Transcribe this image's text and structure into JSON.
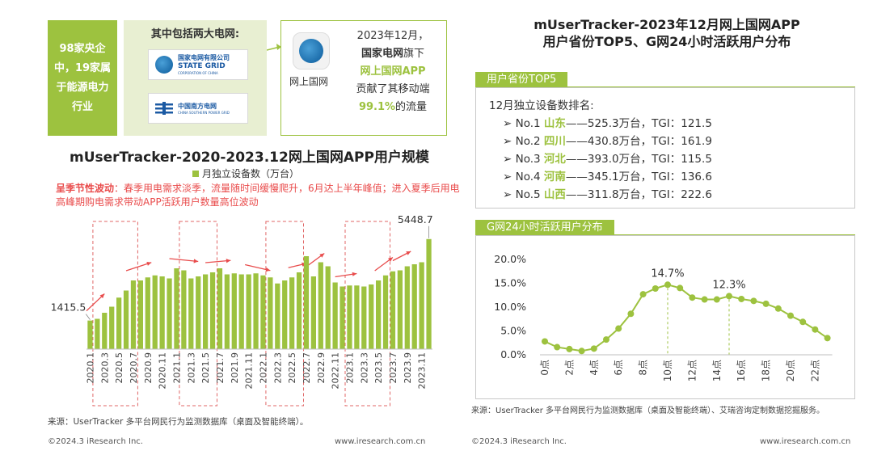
{
  "left": {
    "green_box_text": "98家央企中，19家属于能源电力行业",
    "grid_title": "其中包括两大电网:",
    "logo_state_grid": {
      "cn": "国家电网有限公司",
      "en": "STATE GRID",
      "sub": "CORPORATION OF CHINA"
    },
    "logo_southern_grid": {
      "cn": "中国南方电网",
      "sub": "CHINA SOUTHERN POWER GRID"
    },
    "app_caption": "网上国网",
    "app_text": {
      "line1": "2023年12月，",
      "line2a": "国家电网",
      "line2b": "旗下",
      "line3": "网上国网APP",
      "line4": "贡献了其移动端",
      "line5a": "99.1%",
      "line5b": "的流量"
    },
    "note_bold": "呈季节性波动",
    "note_text": "：春季用电需求淡季，流量随时间缓慢爬升，6月达上半年峰值；进入夏季后用电高峰期购电需求带动APP活跃用户数量高位波动",
    "source": "来源：UserTracker 多平台网民行为监测数据库（桌面及智能终端）。",
    "footer_left": "©2024.3 iResearch Inc.",
    "footer_right": "www.iresearch.com.cn"
  },
  "right": {
    "title_line1": "mUserTracker-2023年12月网上国网APP",
    "title_line2": "用户省份TOP5、G网24小时活跃用户分布",
    "top5_label": "用户省份TOP5",
    "top5_intro": "12月独立设备数排名:",
    "top5": [
      {
        "rank": "No.1",
        "prov": "山东",
        "value": "——525.3万台，TGI：121.5"
      },
      {
        "rank": "No.2",
        "prov": "四川",
        "value": "——430.8万台，TGI：161.9"
      },
      {
        "rank": "No.3",
        "prov": "河北",
        "value": "——393.0万台，TGI：115.5"
      },
      {
        "rank": "No.4",
        "prov": "河南",
        "value": "——345.1万台，TGI：136.6"
      },
      {
        "rank": "No.5",
        "prov": "山西",
        "value": "——311.8万台，TGI：222.6"
      }
    ],
    "hourly_label": "G网24小时活跃用户分布",
    "source": "来源：UserTracker 多平台网民行为监测数据库（桌面及智能终端）、艾瑞咨询定制数据挖掘服务。",
    "footer_left": "©2024.3 iResearch Inc.",
    "footer_right": "www.iresearch.com.cn"
  },
  "chart_data": [
    {
      "type": "bar",
      "title": "mUserTracker-2020-2023.12网上国网APP用户规模",
      "legend": "月独立设备数（万台）",
      "color": "#9dc23f",
      "categories": [
        "2020.1",
        "2020.2",
        "2020.3",
        "2020.4",
        "2020.5",
        "2020.6",
        "2020.7",
        "2020.8",
        "2020.9",
        "2020.10",
        "2020.11",
        "2020.12",
        "2021.1",
        "2021.2",
        "2021.3",
        "2021.4",
        "2021.5",
        "2021.6",
        "2021.7",
        "2021.8",
        "2021.9",
        "2021.10",
        "2021.11",
        "2021.12",
        "2022.1",
        "2022.2",
        "2022.3",
        "2022.4",
        "2022.5",
        "2022.6",
        "2022.7",
        "2022.8",
        "2022.9",
        "2022.10",
        "2022.11",
        "2022.12",
        "2023.1",
        "2023.2",
        "2023.3",
        "2023.4",
        "2023.5",
        "2023.6",
        "2023.7",
        "2023.8",
        "2023.9",
        "2023.10",
        "2023.11",
        "2023.12"
      ],
      "tick_labels": [
        "2020.1",
        "2020.3",
        "2020.5",
        "2020.7",
        "2020.9",
        "2020.11",
        "2021.1",
        "2021.3",
        "2021.5",
        "2021.7",
        "2021.9",
        "2021.11",
        "2022.1",
        "2022.3",
        "2022.5",
        "2022.7",
        "2022.9",
        "2022.11",
        "2023.1",
        "2023.3",
        "2023.5",
        "2023.7",
        "2023.9",
        "2023.11"
      ],
      "values": [
        1415.5,
        1500,
        1800,
        2100,
        2550,
        2900,
        3400,
        3400,
        3550,
        3650,
        3600,
        3500,
        4000,
        3900,
        3500,
        3600,
        3700,
        3800,
        4000,
        3700,
        3750,
        3700,
        3700,
        3750,
        3650,
        3550,
        3250,
        3400,
        3550,
        3800,
        4600,
        3600,
        4300,
        4100,
        3300,
        3100,
        3150,
        3150,
        3100,
        3200,
        3400,
        3650,
        3850,
        3900,
        4100,
        4200,
        4300,
        5448.7
      ],
      "data_labels": {
        "first": "1415.5",
        "last": "5448.7"
      },
      "ylim": [
        0,
        6000
      ]
    },
    {
      "type": "line",
      "title": "G网24小时活跃用户分布",
      "color": "#9dc23f",
      "x": [
        "0点",
        "1点",
        "2点",
        "3点",
        "4点",
        "5点",
        "6点",
        "7点",
        "8点",
        "9点",
        "10点",
        "11点",
        "12点",
        "13点",
        "14点",
        "15点",
        "16点",
        "17点",
        "18点",
        "19点",
        "20点",
        "21点",
        "22点",
        "23点"
      ],
      "tick_labels": [
        "0点",
        "2点",
        "4点",
        "6点",
        "8点",
        "10点",
        "12点",
        "14点",
        "16点",
        "18点",
        "20点",
        "22点"
      ],
      "values": [
        2.8,
        1.6,
        1.2,
        0.8,
        1.3,
        3.2,
        5.5,
        8.6,
        12.7,
        13.9,
        14.7,
        14.0,
        12.0,
        11.6,
        11.6,
        12.3,
        11.7,
        11.3,
        10.7,
        9.7,
        8.2,
        6.9,
        5.3,
        3.5
      ],
      "y_ticks": [
        "0.0%",
        "5.0%",
        "10.0%",
        "15.0%",
        "20.0%"
      ],
      "ylim": [
        0,
        20
      ],
      "annotations": [
        {
          "hour": 10,
          "label": "14.7%"
        },
        {
          "hour": 15,
          "label": "12.3%"
        }
      ]
    }
  ]
}
